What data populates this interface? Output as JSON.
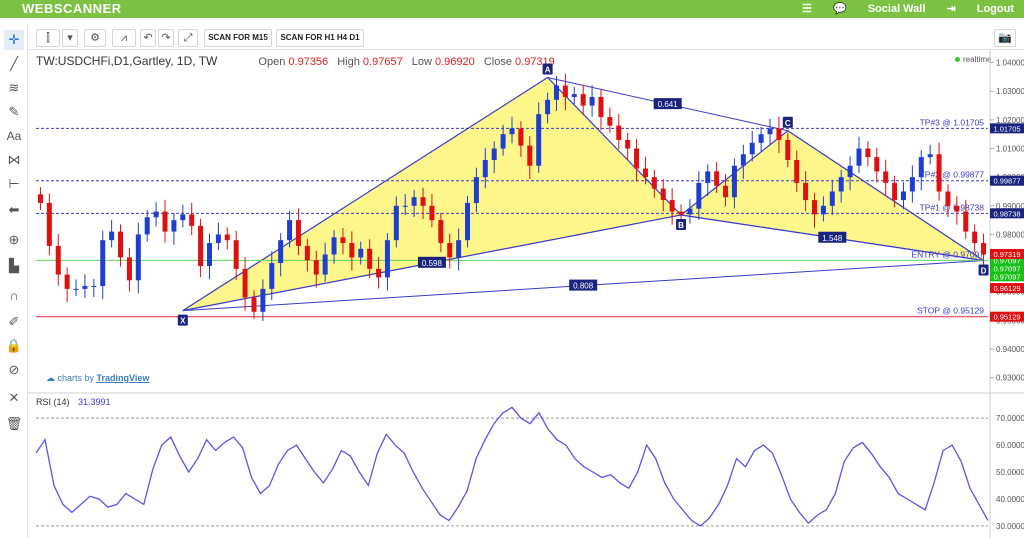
{
  "app": {
    "brand": "WEBSCANNER",
    "social_wall": "Social Wall",
    "logout": "Logout"
  },
  "toolbar": {
    "scan_m15": "SCAN FOR M15",
    "scan_h1": "SCAN FOR H1 H4 D1"
  },
  "legend": {
    "symbol": "TW:USDCHFi,D1,Gartley, 1D, TW",
    "open_label": "Open",
    "open": "0.97356",
    "high_label": "High",
    "high": "0.97657",
    "low_label": "Low",
    "low": "0.96920",
    "close_label": "Close",
    "close": "0.97319"
  },
  "realtime": "realtime",
  "tv": {
    "prefix": "charts by",
    "name": "TradingView"
  },
  "rsi": {
    "label": "RSI (14)",
    "value": "31.3991"
  },
  "chart_data": [
    {
      "type": "candlestick",
      "title": "TW:USDCHFi,D1,Gartley, 1D, TW",
      "ylim": [
        0.925,
        1.043
      ],
      "y_ticks": [
        "1.04000",
        "1.03000",
        "1.02000",
        "1.01000",
        "1.00000",
        "0.99000",
        "0.98000",
        "0.97000",
        "0.96000",
        "0.95000",
        "0.94000",
        "0.93000"
      ],
      "y_tick_values": [
        1.04,
        1.03,
        1.02,
        1.01,
        1.0,
        0.99,
        0.98,
        0.97,
        0.96,
        0.95,
        0.94,
        0.93
      ],
      "close_path": [
        0.991,
        0.976,
        0.966,
        0.961,
        0.961,
        0.962,
        0.962,
        0.978,
        0.981,
        0.972,
        0.964,
        0.98,
        0.986,
        0.988,
        0.981,
        0.985,
        0.987,
        0.983,
        0.969,
        0.977,
        0.98,
        0.978,
        0.968,
        0.958,
        0.953,
        0.961,
        0.97,
        0.978,
        0.985,
        0.976,
        0.971,
        0.966,
        0.973,
        0.979,
        0.977,
        0.972,
        0.975,
        0.968,
        0.965,
        0.978,
        0.99,
        0.99,
        0.993,
        0.99,
        0.985,
        0.977,
        0.972,
        0.978,
        0.991,
        1.0,
        1.006,
        1.01,
        1.015,
        1.017,
        1.011,
        1.004,
        1.022,
        1.027,
        1.032,
        1.028,
        1.029,
        1.025,
        1.028,
        1.021,
        1.018,
        1.013,
        1.01,
        1.003,
        1.0,
        0.996,
        0.992,
        0.988,
        0.987,
        0.989,
        0.998,
        1.002,
        0.997,
        0.993,
        1.004,
        1.008,
        1.012,
        1.015,
        1.017,
        1.013,
        1.006,
        0.998,
        0.992,
        0.987,
        0.99,
        0.995,
        1.0,
        1.004,
        1.01,
        1.007,
        1.002,
        0.998,
        0.992,
        0.995,
        1.0,
        1.007,
        1.008,
        0.995,
        0.99,
        0.988,
        0.981,
        0.977,
        0.973
      ],
      "pattern": {
        "name": "Gartley",
        "points": [
          {
            "label": "X",
            "x_index": 16,
            "price": 0.9534
          },
          {
            "label": "A",
            "x_index": 57,
            "price": 1.0348
          },
          {
            "label": "B",
            "x_index": 72,
            "price": 0.9868
          },
          {
            "label": "C",
            "x_index": 84,
            "price": 1.0162
          },
          {
            "label": "D",
            "x_index": 106,
            "price": 0.9709
          }
        ],
        "ratios": [
          {
            "label": "0.598",
            "between": [
              "X",
              "B"
            ]
          },
          {
            "label": "0.641",
            "between": [
              "A",
              "C"
            ]
          },
          {
            "label": "1.548",
            "between": [
              "B",
              "D"
            ]
          },
          {
            "label": "0.808",
            "between": [
              "X",
              "D"
            ]
          }
        ]
      },
      "levels": [
        {
          "name": "TP#3",
          "label": "TP#3 @ 1.01705",
          "value": 1.01705,
          "price_tag": "1.01705",
          "color": "#3a3ac8",
          "style": "dashed"
        },
        {
          "name": "TP#2",
          "label": "TP#2 @ 0.99877",
          "value": 0.99877,
          "price_tag": "0.99877",
          "color": "#3a3ac8",
          "style": "dashed"
        },
        {
          "name": "TP#1",
          "label": "TP#1 @ 0.98738",
          "value": 0.98738,
          "price_tag": "0.98738",
          "color": "#3a3ac8",
          "style": "dashed"
        },
        {
          "name": "ENTRY",
          "label": "ENTRY @ 0.97097",
          "value": 0.97097,
          "price_tag": "0.97097",
          "color": "#5ad65a",
          "style": "solid"
        },
        {
          "name": "STOP",
          "label": "STOP @ 0.95129",
          "value": 0.95129,
          "price_tag": "0.95129",
          "color": "#e03030",
          "style": "solid"
        }
      ],
      "extra_price_tags": [
        {
          "value": 0.97319,
          "label": "0.97319",
          "color": "#e01010"
        },
        {
          "value": 0.97097,
          "label": "0.97097",
          "color": "#18c018"
        },
        {
          "value": 0.97097,
          "label": "0.97097",
          "color": "#18c018"
        },
        {
          "value": 0.96129,
          "label": "0.96129",
          "color": "#e01010"
        }
      ],
      "colors": {
        "up": "#1f3ed1",
        "down": "#e01010",
        "pattern_fill": "#fbf577",
        "pattern_line": "#3a3ac8"
      }
    },
    {
      "type": "line",
      "title": "RSI (14)",
      "ylim": [
        27,
        76
      ],
      "y_ticks": [
        "70.0000",
        "60.0000",
        "50.0000",
        "40.0000",
        "30.0000"
      ],
      "y_tick_values": [
        70,
        60,
        50,
        40,
        30
      ],
      "series": [
        {
          "values": [
            57,
            62,
            45,
            38,
            35,
            38,
            41,
            40,
            37,
            38,
            42,
            40,
            38,
            51,
            60,
            63,
            56,
            50,
            55,
            62,
            58,
            61,
            63,
            59,
            48,
            42,
            45,
            53,
            58,
            60,
            55,
            50,
            46,
            51,
            58,
            56,
            50,
            45,
            57,
            64,
            60,
            57,
            50,
            44,
            39,
            34,
            32,
            37,
            43,
            55,
            62,
            68,
            72,
            74,
            70,
            68,
            72,
            66,
            62,
            60,
            55,
            52,
            50,
            48,
            49,
            46,
            44,
            50,
            60,
            55,
            46,
            40,
            36,
            32,
            30,
            33,
            38,
            45,
            55,
            52,
            58,
            60,
            57,
            49,
            40,
            35,
            31,
            34,
            36,
            42,
            54,
            59,
            61,
            57,
            52,
            48,
            42,
            40,
            38,
            36,
            46,
            58,
            60,
            54,
            44,
            38,
            32
          ]
        }
      ],
      "hlines": [
        70,
        30
      ]
    }
  ]
}
